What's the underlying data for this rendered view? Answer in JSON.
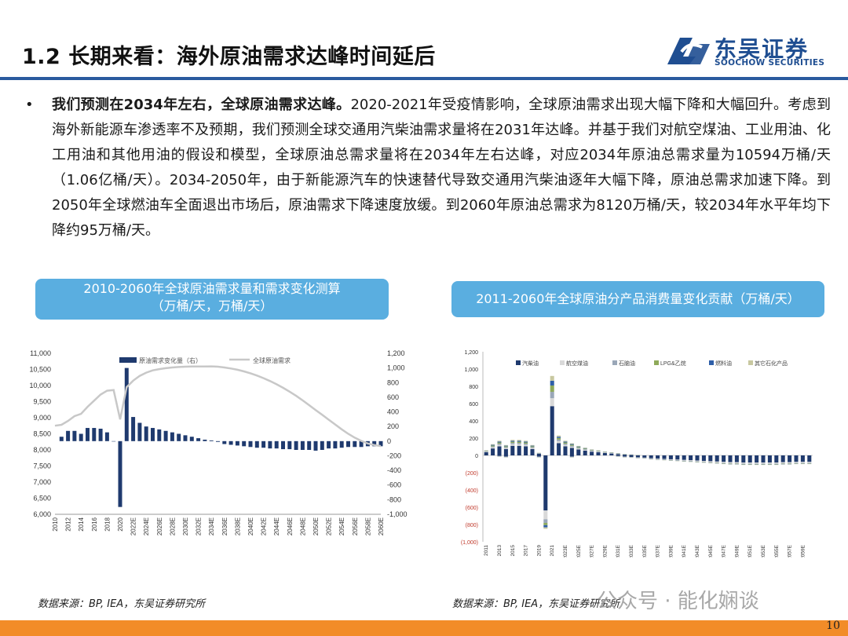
{
  "page": {
    "title": "1.2 长期来看：海外原油需求达峰时间延后",
    "logo_cn": "东吴证券",
    "logo_en": "SOOCHOW SECURITIES",
    "bullet": "•",
    "body_bold": "我们预测在2034年左右，全球原油需求达峰。",
    "body_rest": "2020-2021年受疫情影响，全球原油需求出现大幅下降和大幅回升。考虑到海外新能源车渗透率不及预期，我们预测全球交通用汽柴油需求量将在2031年达峰。并基于我们对航空煤油、工业用油、化工用油和其他用油的假设和模型，全球原油总需求量将在2034年左右达峰，对应2034年原油总需求量为10594万桶/天（1.06亿桶/天）。2034-2050年，由于新能源汽车的快速替代导致交通用汽柴油逐年大幅下降，原油总需求加速下降。到2050年全球燃油车全面退出市场后，原油需求下降速度放缓。到2060年原油总需求为8120万桶/天，较2034年水平年均下降约95万桶/天。",
    "box1_line1": "2010-2060年全球原油需求量和需求变化测算",
    "box1_line2": "（万桶/天，万桶/天）",
    "box2": "2011-2060年全球原油分产品消费量变化贡献（万桶/天）",
    "source1": "数据来源：BP, IEA，东吴证券研究所",
    "source2": "数据来源：BP, IEA，东吴证券研究所",
    "watermark": "公众号 · 能化娴谈",
    "page_number": "10",
    "colors": {
      "brand": "#1f4e91",
      "rule": "#2a5a9e",
      "box": "#5aaee0",
      "footer": "#f28c28",
      "bar": "#1f3a6e",
      "line": "#c8c8c8"
    }
  },
  "chart_data": [
    {
      "type": "bar+line",
      "legend": [
        "原油需求变化量（右）",
        "全球原油需求"
      ],
      "left_axis": {
        "ylim": [
          6000,
          11000
        ],
        "ticks": [
          "6,000",
          "6,500",
          "7,000",
          "7,500",
          "8,000",
          "8,500",
          "9,000",
          "9,500",
          "10,000",
          "10,500",
          "11,000"
        ]
      },
      "right_axis": {
        "ylim": [
          -1000,
          1200
        ],
        "ticks": [
          "-1,000",
          "-800",
          "-600",
          "-400",
          "-200",
          "0",
          "200",
          "400",
          "600",
          "800",
          "1,000",
          "1,200"
        ]
      },
      "x_tick_labels": [
        "2010",
        "2012",
        "2014",
        "2016",
        "2018",
        "2020",
        "2022E",
        "2024E",
        "2026E",
        "2028E",
        "2030E",
        "2032E",
        "2034E",
        "2036E",
        "2038E",
        "2040E",
        "2042E",
        "2044E",
        "2046E",
        "2048E",
        "2050E",
        "2052E",
        "2054E",
        "2056E",
        "2058E",
        "2060E"
      ],
      "years": [
        2011,
        2012,
        2013,
        2014,
        2015,
        2016,
        2017,
        2018,
        2019,
        2020,
        2021,
        2022,
        2023,
        2024,
        2025,
        2026,
        2027,
        2028,
        2029,
        2030,
        2031,
        2032,
        2033,
        2034,
        2035,
        2036,
        2037,
        2038,
        2039,
        2040,
        2041,
        2042,
        2043,
        2044,
        2045,
        2046,
        2047,
        2048,
        2049,
        2050,
        2051,
        2052,
        2053,
        2054,
        2055,
        2056,
        2057,
        2058,
        2059,
        2060
      ],
      "demand_change": [
        60,
        140,
        140,
        100,
        180,
        180,
        170,
        120,
        0,
        -900,
        1000,
        330,
        250,
        200,
        180,
        160,
        140,
        120,
        100,
        80,
        60,
        40,
        20,
        10,
        -10,
        -40,
        -50,
        -60,
        -70,
        -80,
        -90,
        -90,
        -100,
        -100,
        -110,
        -110,
        -120,
        -120,
        -120,
        -130,
        -120,
        -100,
        -100,
        -90,
        -80,
        -80,
        -80,
        -70,
        -70,
        -70
      ],
      "line_years": [
        2010,
        2011,
        2012,
        2013,
        2014,
        2015,
        2016,
        2017,
        2018,
        2019,
        2020,
        2021,
        2022,
        2023,
        2024,
        2025,
        2026,
        2027,
        2028,
        2029,
        2030,
        2031,
        2032,
        2033,
        2034,
        2035,
        2036,
        2037,
        2038,
        2039,
        2040,
        2041,
        2042,
        2043,
        2044,
        2045,
        2046,
        2047,
        2048,
        2049,
        2050,
        2051,
        2052,
        2053,
        2054,
        2055,
        2056,
        2057,
        2058,
        2059,
        2060
      ],
      "demand": [
        8750,
        8780,
        8900,
        9050,
        9120,
        9340,
        9530,
        9720,
        9840,
        9860,
        8950,
        9950,
        10150,
        10300,
        10400,
        10470,
        10510,
        10540,
        10560,
        10575,
        10585,
        10590,
        10592,
        10593,
        10594,
        10585,
        10560,
        10530,
        10490,
        10440,
        10380,
        10310,
        10230,
        10140,
        10040,
        9930,
        9810,
        9680,
        9540,
        9390,
        9240,
        9090,
        8940,
        8790,
        8640,
        8500,
        8380,
        8280,
        8200,
        8150,
        8120
      ]
    },
    {
      "type": "stacked-bar",
      "legend": [
        "汽柴油",
        "航空煤油",
        "石脑油",
        "LPG&乙烷",
        "燃料油",
        "其它石化产品"
      ],
      "colors": [
        "#1f3a6e",
        "#d9d9d9",
        "#9aa7b8",
        "#8faa5a",
        "#2e5fa8",
        "#c8c8a0"
      ],
      "ylim": [
        -1000,
        1200
      ],
      "y_ticks": [
        "(1,000)",
        "(800)",
        "(600)",
        "(400)",
        "(200)",
        "0",
        "200",
        "400",
        "600",
        "800",
        "1,000",
        "1,200"
      ],
      "x_tick_labels": [
        "2011",
        "2013",
        "2015",
        "2017",
        "2019",
        "2021",
        "2023E",
        "2025E",
        "2027E",
        "2029E",
        "2031E",
        "2033E",
        "2035E",
        "2037E",
        "2039E",
        "2041E",
        "2043E",
        "2045E",
        "2047E",
        "2049E",
        "2051E",
        "2053E",
        "2055E",
        "2057E",
        "2059E"
      ],
      "years": [
        2011,
        2012,
        2013,
        2014,
        2015,
        2016,
        2017,
        2018,
        2019,
        2020,
        2021,
        2022,
        2023,
        2024,
        2025,
        2026,
        2027,
        2028,
        2029,
        2030,
        2031,
        2032,
        2033,
        2034,
        2035,
        2036,
        2037,
        2038,
        2039,
        2040,
        2041,
        2042,
        2043,
        2044,
        2045,
        2046,
        2047,
        2048,
        2049,
        2050,
        2051,
        2052,
        2053,
        2054,
        2055,
        2056,
        2057,
        2058,
        2059,
        2060
      ],
      "positive_total": [
        60,
        130,
        170,
        120,
        180,
        180,
        170,
        120,
        30,
        0,
        920,
        230,
        170,
        140,
        110,
        90,
        70,
        60,
        45,
        35,
        25,
        15,
        10,
        5,
        0,
        0,
        0,
        0,
        0,
        0,
        0,
        0,
        0,
        0,
        0,
        0,
        0,
        0,
        0,
        0,
        0,
        0,
        0,
        0,
        0,
        0,
        0,
        0,
        0,
        0
      ],
      "negative_total": [
        0,
        0,
        -10,
        -20,
        0,
        0,
        0,
        0,
        -20,
        -850,
        0,
        0,
        0,
        -20,
        0,
        0,
        0,
        0,
        0,
        0,
        -10,
        -20,
        -25,
        -30,
        -35,
        -45,
        -50,
        -55,
        -60,
        -65,
        -70,
        -75,
        -80,
        -85,
        -90,
        -95,
        -100,
        -105,
        -105,
        -110,
        -110,
        -110,
        -110,
        -110,
        -110,
        -105,
        -105,
        -100,
        -100,
        -100
      ]
    }
  ]
}
